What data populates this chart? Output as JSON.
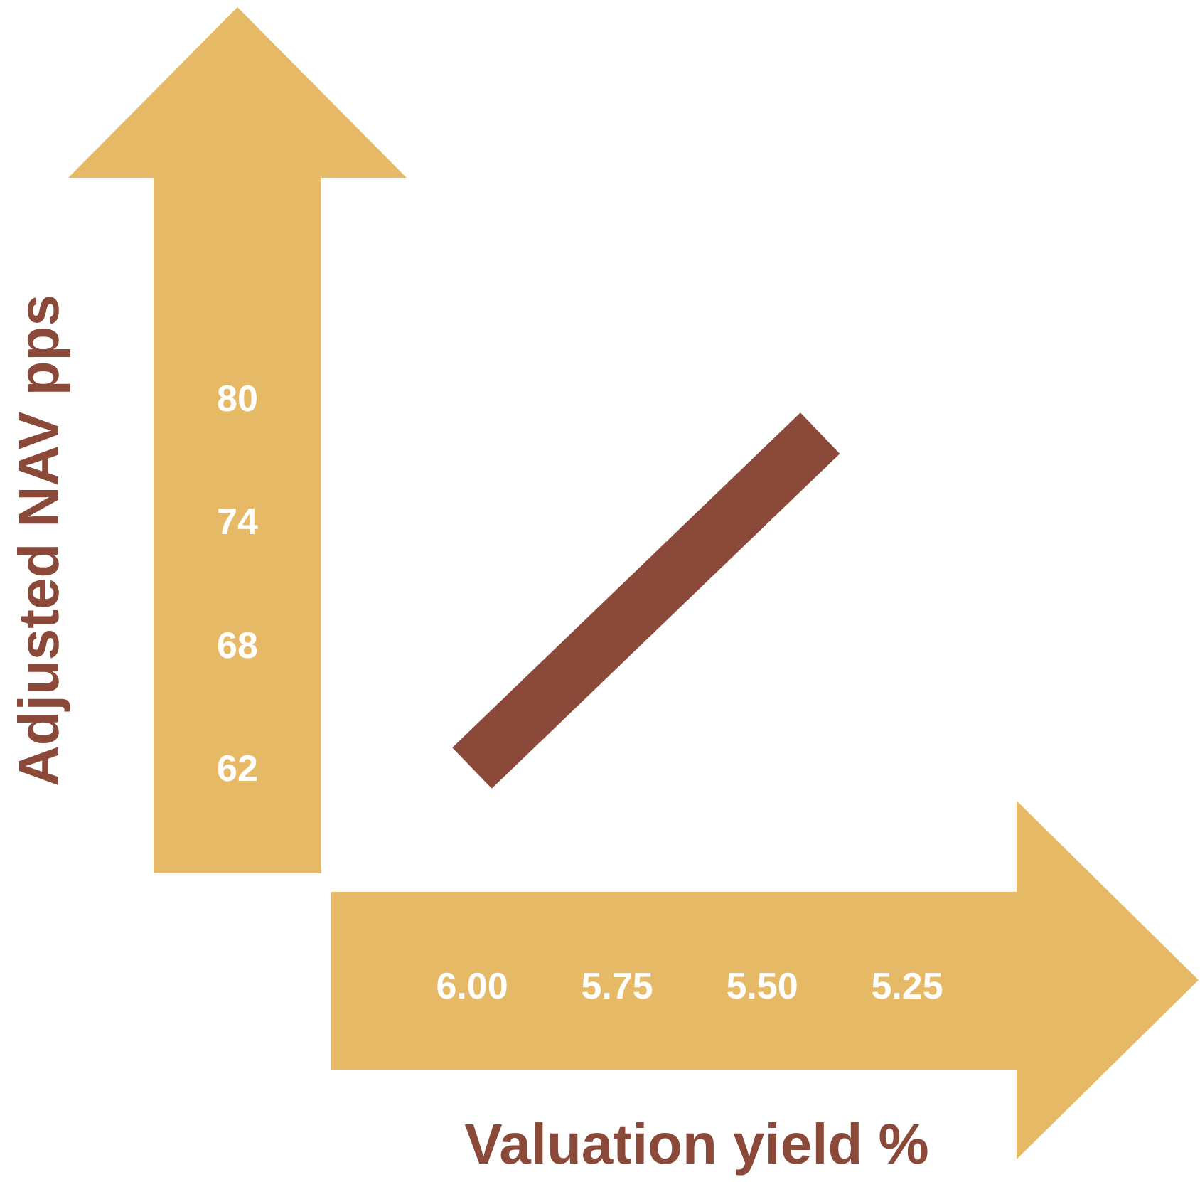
{
  "chart_data": {
    "type": "line",
    "xlabel": "Valuation yield %",
    "ylabel": "Adjusted NAV pps",
    "x": [
      6.0,
      5.4
    ],
    "series": [
      {
        "color": "#8b4a39",
        "values": [
          62,
          78.3
        ]
      }
    ],
    "xlim": [
      6.0,
      5.25
    ],
    "xticks": [
      {
        "value": 6.0,
        "label": "6.00"
      },
      {
        "value": 5.75,
        "label": "5.75"
      },
      {
        "value": 5.5,
        "label": "5.50"
      },
      {
        "value": 5.25,
        "label": "5.25"
      }
    ],
    "ylim": [
      62,
      80
    ],
    "yticks": [
      62,
      68,
      74,
      80
    ],
    "line_style": "solid",
    "marker": "none",
    "grid": false
  }
}
